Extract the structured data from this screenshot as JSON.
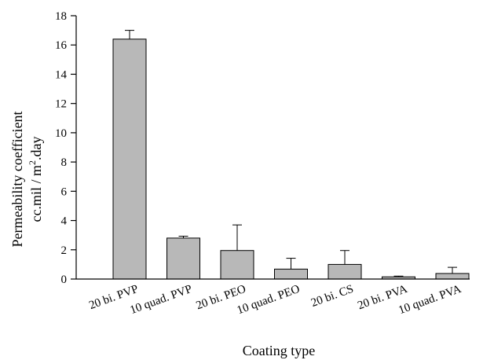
{
  "chart_data": {
    "type": "bar",
    "title": "",
    "xlabel": "Coating type",
    "ylabel_line1": "Permeability coefficient",
    "ylabel_line2_prefix": "cc.mil / m",
    "ylabel_line2_sup": "2",
    "ylabel_line2_suffix": ".day",
    "ylim": [
      0,
      18
    ],
    "yticks": [
      0,
      2,
      4,
      6,
      8,
      10,
      12,
      14,
      16,
      18
    ],
    "categories": [
      "20 bi. PVP",
      "10 quad. PVP",
      "20 bi. PEO",
      "10 quad. PEO",
      "20 bi. CS",
      "20 bi. PVA",
      "10 quad. PVA"
    ],
    "values": [
      16.4,
      2.8,
      1.95,
      0.68,
      1.0,
      0.15,
      0.38
    ],
    "error_upper": [
      17.0,
      2.93,
      3.7,
      1.42,
      1.95,
      0.2,
      0.8
    ],
    "grid": false,
    "bar_color": "#b8b8b8"
  }
}
